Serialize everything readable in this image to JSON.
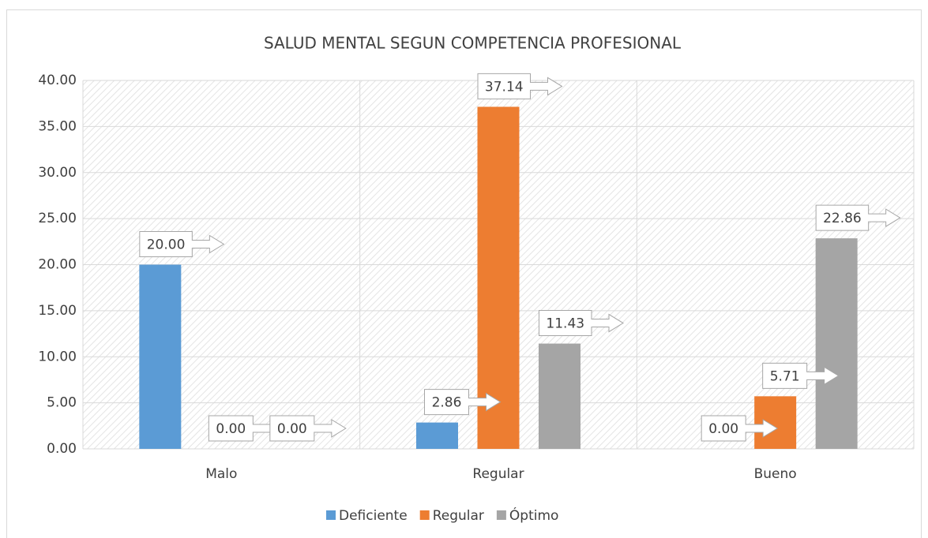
{
  "chart_data": {
    "type": "bar",
    "title": "SALUD MENTAL SEGUN COMPETENCIA PROFESIONAL",
    "categories": [
      "Malo",
      "Regular",
      "Bueno"
    ],
    "series": [
      {
        "name": "Deficiente",
        "color": "#5b9bd5",
        "values": [
          20.0,
          2.86,
          0.0
        ],
        "value_labels": [
          "20.00",
          "2.86",
          "0.00"
        ]
      },
      {
        "name": "Regular",
        "color": "#ed7d31",
        "values": [
          0.0,
          37.14,
          5.71
        ],
        "value_labels": [
          "0.00",
          "37.14",
          "5.71"
        ]
      },
      {
        "name": "Óptimo",
        "color": "#a5a5a5",
        "values": [
          0.0,
          11.43,
          22.86
        ],
        "value_labels": [
          "0.00",
          "11.43",
          "22.86"
        ]
      }
    ],
    "ylim": [
      0,
      40
    ],
    "yticks": [
      {
        "value": 0,
        "label": "0.00"
      },
      {
        "value": 5,
        "label": "5.00"
      },
      {
        "value": 10,
        "label": "10.00"
      },
      {
        "value": 15,
        "label": "15.00"
      },
      {
        "value": 20,
        "label": "20.00"
      },
      {
        "value": 25,
        "label": "25.00"
      },
      {
        "value": 30,
        "label": "30.00"
      },
      {
        "value": 35,
        "label": "35.00"
      },
      {
        "value": 40,
        "label": "40.00"
      }
    ],
    "grid": true,
    "legend": "bottom"
  }
}
